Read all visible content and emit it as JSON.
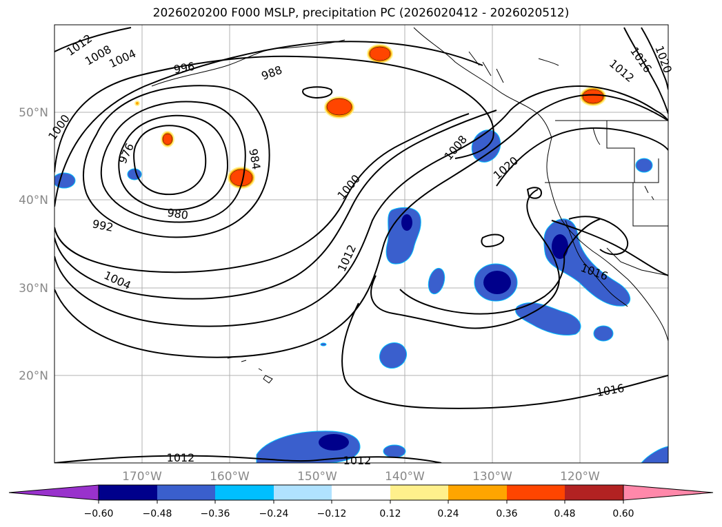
{
  "title": "2026020200 F000 MSLP, precipitation PC (2026020412 - 2026020512)",
  "map": {
    "lon_labels": [
      "170°W",
      "160°W",
      "150°W",
      "140°W",
      "130°W",
      "120°W"
    ],
    "lat_labels": [
      "50°N",
      "40°N",
      "30°N",
      "20°N"
    ],
    "contour_labels": [
      "1012",
      "1008",
      "1004",
      "996",
      "988",
      "1000",
      "976",
      "984",
      "980",
      "992",
      "1004",
      "1000",
      "1008",
      "1012",
      "1020",
      "1012",
      "1016",
      "1020",
      "1016",
      "1016",
      "1012",
      "1012"
    ]
  },
  "colorbar": {
    "ticks": [
      "−0.60",
      "−0.48",
      "−0.36",
      "−0.24",
      "−0.12",
      "0.12",
      "0.24",
      "0.36",
      "0.48",
      "0.60"
    ],
    "colors": [
      "#9932cc",
      "#00008b",
      "#3a5fcd",
      "#00bfff",
      "#b0e2ff",
      "#ffffff",
      "#fff08c",
      "#ffa500",
      "#ff4500",
      "#b22222",
      "#ff88aa"
    ]
  }
}
